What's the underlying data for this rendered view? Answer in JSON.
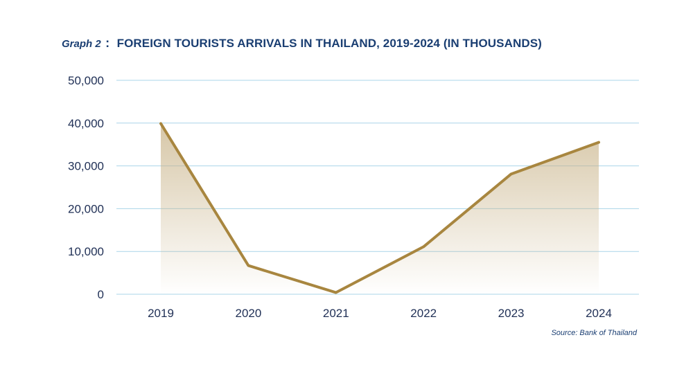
{
  "header": {
    "graph_label": "Graph 2",
    "colon": ":",
    "title": "FOREIGN TOURISTS ARRIVALS IN THAILAND, 2019-2024 (IN THOUSANDS)"
  },
  "source": "Source: Bank of Thailand",
  "colors": {
    "line": "#a8863f",
    "fill_top": "#c9b48a",
    "grid": "#a9d4e8",
    "text": "#1a3e72"
  },
  "chart_data": {
    "type": "area",
    "categories": [
      "2019",
      "2020",
      "2021",
      "2022",
      "2023",
      "2024"
    ],
    "series": [
      {
        "values": [
          39900,
          6700,
          400,
          11100,
          28100,
          35500
        ]
      }
    ],
    "ylim": [
      0,
      50000
    ],
    "yticks": [
      0,
      10000,
      20000,
      30000,
      40000,
      50000
    ],
    "ytick_labels": [
      "0",
      "10,000",
      "20,000",
      "30,000",
      "40,000",
      "50,000"
    ],
    "grid": true,
    "legend": "none"
  }
}
